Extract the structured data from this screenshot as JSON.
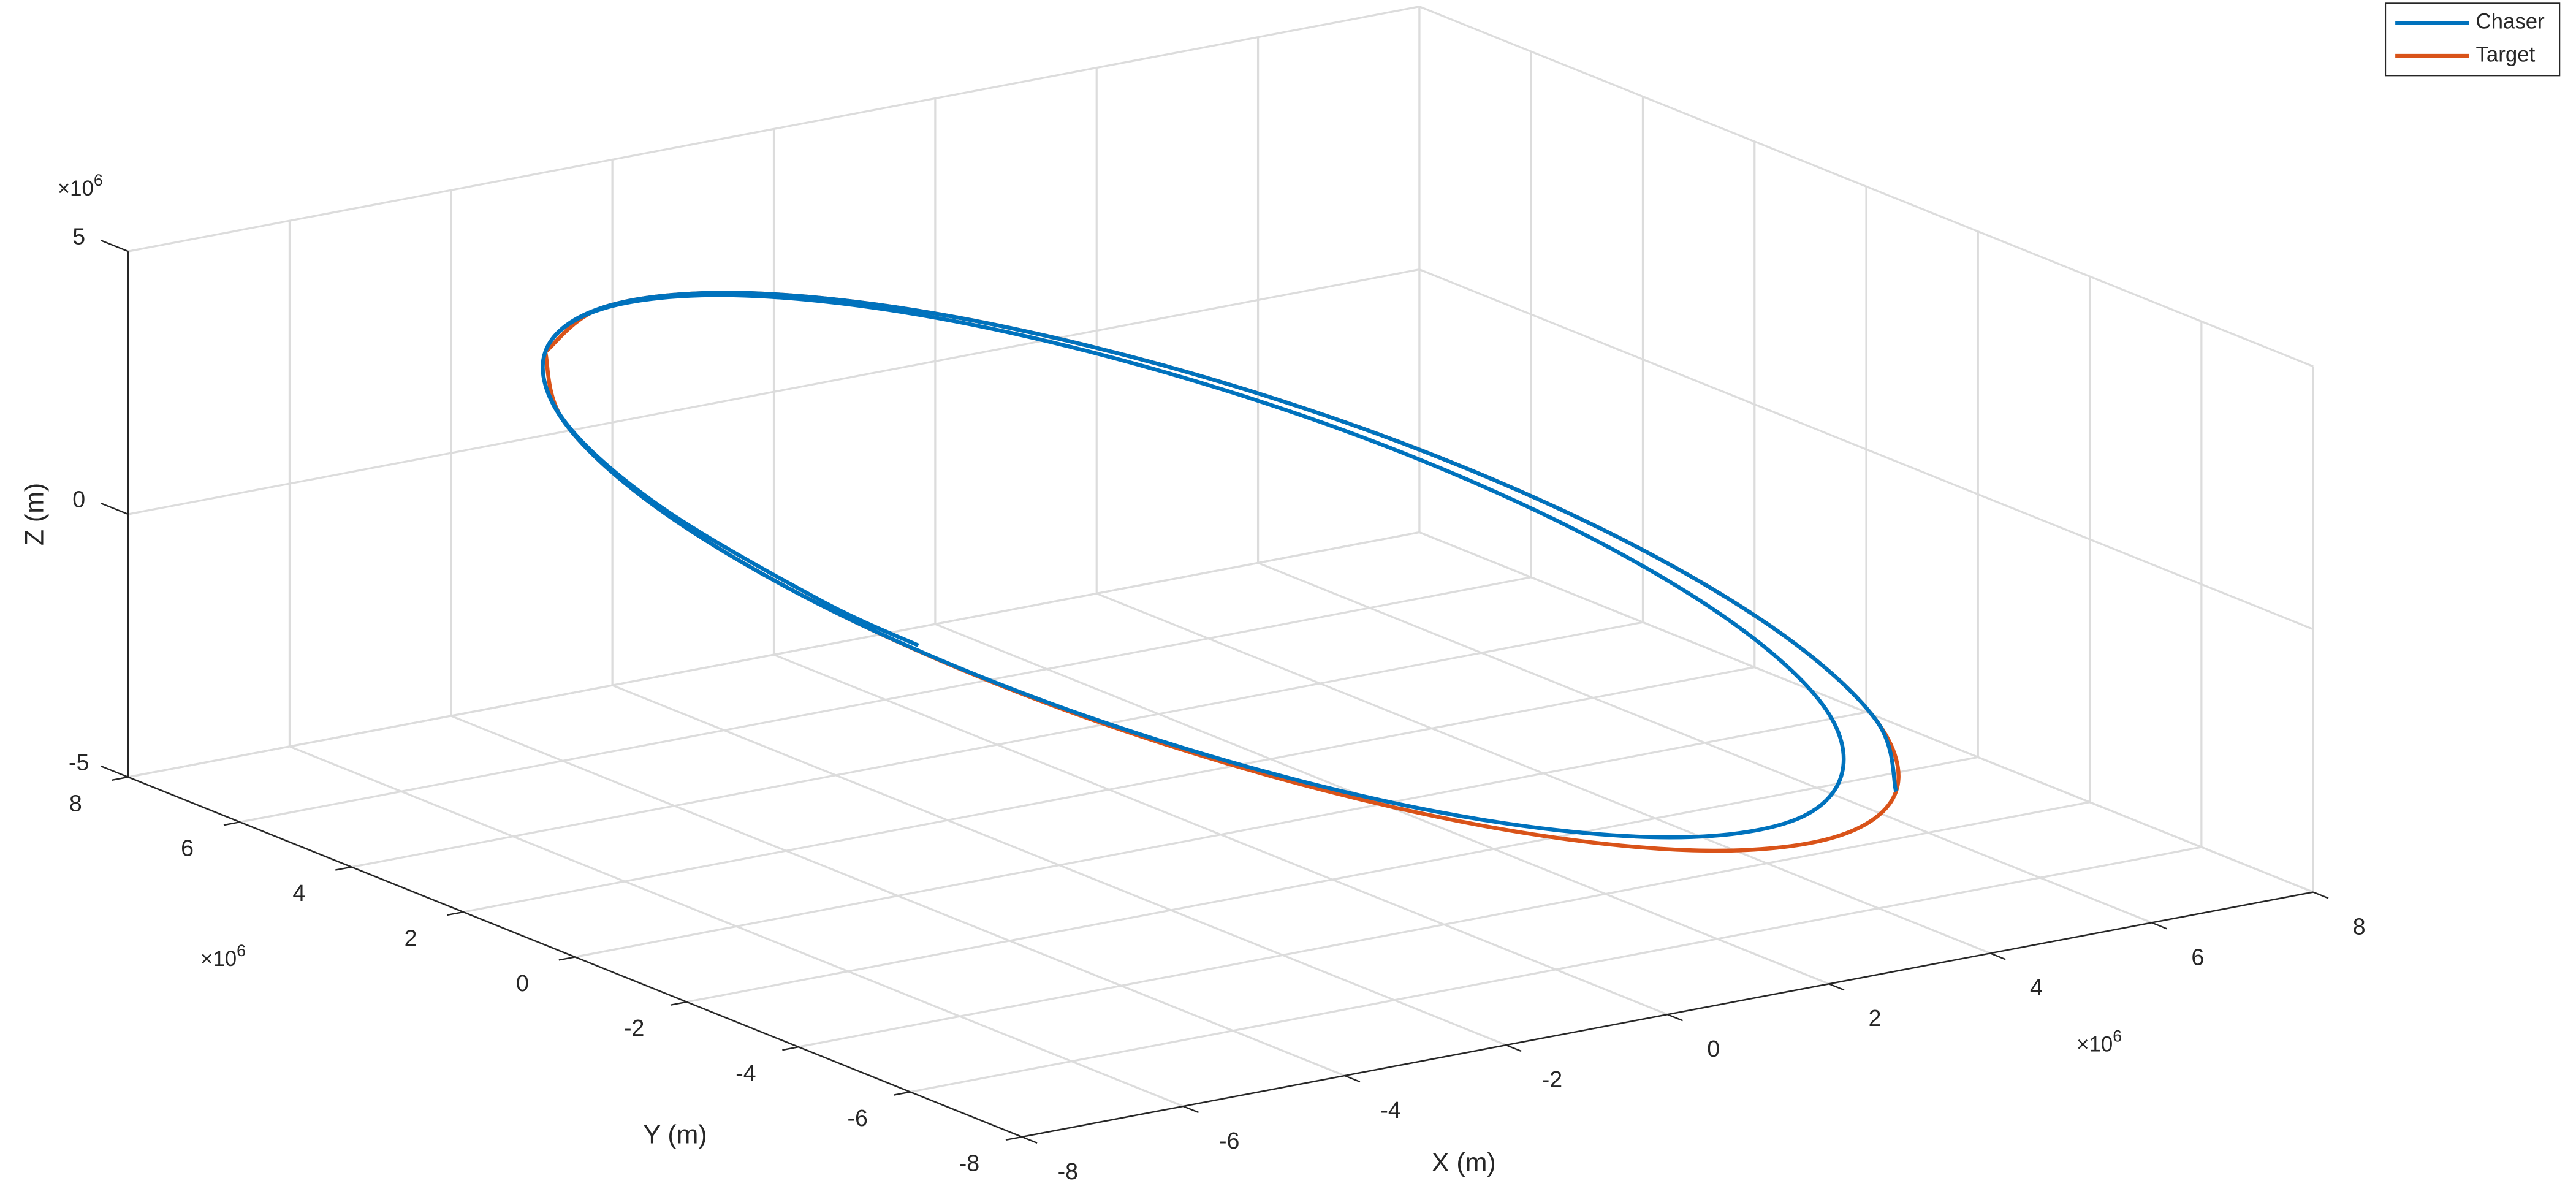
{
  "chart_data": {
    "type": "line3d",
    "xlabel": "X (m)",
    "ylabel": "Y (m)",
    "zlabel": "Z (m)",
    "x_multiplier": {
      "base": "×10",
      "exponent": "6"
    },
    "y_multiplier": {
      "base": "×10",
      "exponent": "6"
    },
    "z_multiplier": {
      "base": "×10",
      "exponent": "6"
    },
    "xlim": [
      -8,
      8
    ],
    "ylim": [
      -8,
      8
    ],
    "zlim": [
      -5,
      5
    ],
    "xticks": [
      -8,
      -6,
      -4,
      -2,
      0,
      2,
      4,
      6,
      8
    ],
    "yticks": [
      -8,
      -6,
      -4,
      -2,
      0,
      2,
      4,
      6,
      8
    ],
    "zticks": [
      -5,
      0,
      5
    ],
    "grid": true,
    "legend": "northeast",
    "series": [
      {
        "name": "Chaser",
        "color": "#0072BD",
        "x": [
          5.6,
          6.7,
          6.99,
          6.44,
          5.11,
          3.16,
          0.84,
          -1.59,
          -3.83,
          -5.6,
          -6.7,
          -6.99,
          -6.44,
          -5.11,
          -3.19,
          -0.94,
          1.4,
          3.52,
          5.15,
          6.21,
          6.49,
          5.96,
          4.68,
          2.81,
          0.58,
          -1.75,
          -3.9,
          -5.6,
          -6.66,
          -6.93,
          -6.41,
          -5.85
        ],
        "y": [
          -4.0,
          -2.05,
          0.15,
          2.33,
          4.23,
          5.62,
          6.33,
          6.28,
          5.47,
          4.0,
          2.05,
          -0.15,
          -2.33,
          -4.17,
          -5.49,
          -6.12,
          -6.01,
          -5.15,
          -3.68,
          -1.81,
          0.3,
          2.4,
          4.22,
          5.56,
          6.24,
          6.19,
          5.41,
          4.0,
          2.13,
          0.02,
          -2.08,
          -3.04
        ],
        "z": [
          -4.1,
          -3.89,
          -3.21,
          -2.14,
          -0.81,
          0.61,
          1.96,
          3.08,
          3.82,
          4.1,
          3.89,
          3.21,
          2.14,
          0.83,
          -0.55,
          -1.84,
          -2.89,
          -3.56,
          -3.77,
          -3.57,
          -2.92,
          -1.89,
          -0.61,
          0.75,
          2.05,
          3.12,
          3.83,
          4.1,
          3.9,
          3.25,
          2.22,
          1.6
        ]
      },
      {
        "name": "Target",
        "color": "#D95319",
        "x": [
          -5.6,
          -3.83,
          -1.59,
          0.84,
          3.16,
          5.11,
          6.44,
          6.99,
          6.7,
          5.6,
          3.83,
          1.59,
          -0.84,
          -3.16,
          -5.11,
          -6.44,
          -6.99,
          -6.7,
          -5.6
        ],
        "y": [
          4.0,
          5.47,
          6.28,
          6.33,
          5.62,
          4.23,
          2.33,
          0.15,
          -2.05,
          -4.0,
          -5.47,
          -6.28,
          -6.33,
          -5.62,
          -4.23,
          -2.33,
          -0.15,
          2.05,
          4.0
        ],
        "z": [
          4.1,
          3.82,
          3.08,
          1.96,
          0.61,
          -0.81,
          -2.14,
          -3.21,
          -3.89,
          -4.1,
          -3.82,
          -3.08,
          -1.96,
          -0.61,
          0.81,
          2.14,
          3.21,
          3.89,
          4.1
        ]
      }
    ]
  }
}
